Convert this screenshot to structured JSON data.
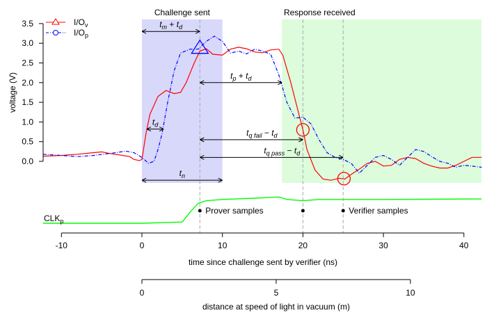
{
  "chart_data": {
    "type": "line",
    "xlabel": "time since challenge sent by verifier (ns)",
    "ylabel": "voltage (V)",
    "xlim": [
      -12.3,
      42.2
    ],
    "ylim": [
      -0.55,
      3.5
    ],
    "x_ticks": [
      -10,
      0,
      10,
      20,
      30,
      40
    ],
    "y_ticks": [
      "0.0",
      "0.5",
      "1.0",
      "1.5",
      "2.0",
      "2.5",
      "3.0",
      "3.5"
    ],
    "secondary_axis": {
      "label": "distance at speed of light in vacuum (m)",
      "ticks": [
        0,
        5,
        10
      ],
      "ns_per_unit": 3.3356
    },
    "legend": {
      "placement": "top-left",
      "entries": [
        {
          "name": "I/O",
          "sub": "v",
          "color": "#ff0000",
          "marker": "triangle",
          "dash": "solid"
        },
        {
          "name": "I/O",
          "sub": "p",
          "color": "#0000ff",
          "marker": "circle",
          "dash": "dot-dash"
        }
      ]
    },
    "regions": [
      {
        "label": "Challenge sent",
        "from": 0,
        "to": 10,
        "color": "#d8d8fb"
      },
      {
        "label": "Response received",
        "from": 17.4,
        "to": 42.2,
        "color": "#dcfcdc"
      }
    ],
    "series": [
      {
        "name": "I/Ov",
        "color": "#ff0000",
        "points": [
          [
            -12.3,
            0.13
          ],
          [
            -10,
            0.15
          ],
          [
            -8,
            0.18
          ],
          [
            -6,
            0.22
          ],
          [
            -5,
            0.24
          ],
          [
            -4,
            0.2
          ],
          [
            -3,
            0.17
          ],
          [
            -1.5,
            0.12
          ],
          [
            -1,
            0.05
          ],
          [
            -0.3,
            0.02
          ],
          [
            0,
            0.05
          ],
          [
            0.5,
            0.7
          ],
          [
            1,
            1.2
          ],
          [
            2,
            1.65
          ],
          [
            3,
            1.8
          ],
          [
            4,
            1.72
          ],
          [
            4.8,
            1.75
          ],
          [
            5.5,
            2.0
          ],
          [
            6.5,
            2.5
          ],
          [
            7.2,
            2.8
          ],
          [
            8,
            2.86
          ],
          [
            8.8,
            2.72
          ],
          [
            10,
            2.7
          ],
          [
            11,
            2.85
          ],
          [
            12,
            2.9
          ],
          [
            13,
            2.86
          ],
          [
            14,
            2.78
          ],
          [
            15,
            2.76
          ],
          [
            16,
            2.83
          ],
          [
            17,
            2.85
          ],
          [
            17.5,
            2.7
          ],
          [
            18.5,
            2.0
          ],
          [
            19.5,
            1.2
          ],
          [
            20,
            0.8
          ],
          [
            20.5,
            0.3
          ],
          [
            21.5,
            -0.22
          ],
          [
            22.5,
            -0.45
          ],
          [
            23.5,
            -0.48
          ],
          [
            24.5,
            -0.43
          ],
          [
            25.2,
            -0.45
          ],
          [
            26,
            -0.33
          ],
          [
            27,
            -0.2
          ],
          [
            28,
            -0.05
          ],
          [
            29,
            0.0
          ],
          [
            30,
            -0.12
          ],
          [
            31,
            -0.1
          ],
          [
            32,
            0.05
          ],
          [
            33,
            0.1
          ],
          [
            34,
            0.07
          ],
          [
            35,
            -0.05
          ],
          [
            36,
            -0.12
          ],
          [
            37,
            -0.17
          ],
          [
            38,
            -0.17
          ],
          [
            39,
            -0.1
          ],
          [
            40,
            0.0
          ],
          [
            41,
            0.1
          ],
          [
            42.2,
            0.1
          ]
        ]
      },
      {
        "name": "I/Op",
        "color": "#0000ff",
        "points": [
          [
            -12.3,
            0.18
          ],
          [
            -10,
            0.15
          ],
          [
            -8,
            0.12
          ],
          [
            -6,
            0.15
          ],
          [
            -4,
            0.2
          ],
          [
            -2,
            0.26
          ],
          [
            -1,
            0.22
          ],
          [
            0,
            0.1
          ],
          [
            0.8,
            -0.05
          ],
          [
            1.5,
            0.0
          ],
          [
            2,
            0.3
          ],
          [
            2.5,
            0.7
          ],
          [
            3.2,
            1.5
          ],
          [
            4,
            2.3
          ],
          [
            4.8,
            2.75
          ],
          [
            6,
            2.85
          ],
          [
            7,
            2.85
          ],
          [
            8,
            3.05
          ],
          [
            9,
            3.18
          ],
          [
            10,
            3.05
          ],
          [
            11,
            2.75
          ],
          [
            12,
            2.8
          ],
          [
            13,
            2.73
          ],
          [
            14,
            2.85
          ],
          [
            15,
            2.8
          ],
          [
            16,
            2.72
          ],
          [
            17,
            2.2
          ],
          [
            18,
            1.5
          ],
          [
            19,
            1.1
          ],
          [
            20,
            1.12
          ],
          [
            21,
            0.95
          ],
          [
            22,
            0.55
          ],
          [
            23,
            0.22
          ],
          [
            24,
            0.1
          ],
          [
            25,
            0.05
          ],
          [
            26,
            -0.05
          ],
          [
            27,
            -0.3
          ],
          [
            28,
            -0.1
          ],
          [
            29,
            0.1
          ],
          [
            30,
            0.15
          ],
          [
            31,
            0.05
          ],
          [
            32,
            -0.1
          ],
          [
            33,
            0.1
          ],
          [
            34,
            0.3
          ],
          [
            35,
            0.25
          ],
          [
            36,
            0.12
          ],
          [
            37,
            0.0
          ],
          [
            38,
            -0.05
          ],
          [
            39,
            -0.15
          ],
          [
            40,
            -0.1
          ],
          [
            41,
            -0.12
          ],
          [
            42.2,
            -0.15
          ]
        ]
      }
    ],
    "clk": {
      "label": "CLK",
      "sub": "p",
      "color": "#00ff00",
      "points": [
        [
          -12.3,
          0.0
        ],
        [
          0,
          0.0
        ],
        [
          5,
          0.05
        ],
        [
          6,
          0.45
        ],
        [
          7,
          0.8
        ],
        [
          8,
          0.9
        ],
        [
          10,
          0.95
        ],
        [
          14,
          1.0
        ],
        [
          17,
          1.05
        ],
        [
          18,
          0.95
        ],
        [
          20,
          0.9
        ],
        [
          22,
          0.95
        ],
        [
          30,
          0.95
        ],
        [
          42.2,
          0.97
        ]
      ]
    },
    "markers": [
      {
        "shape": "triangle",
        "color": "#0000ff",
        "x": 7.2,
        "y": 2.85
      },
      {
        "shape": "circle",
        "color": "#ff0000",
        "x": 20.0,
        "y": 0.8
      },
      {
        "shape": "circle",
        "color": "#ff0000",
        "x": 25.1,
        "y": -0.44
      }
    ],
    "vlines": [
      7.2,
      20,
      25
    ],
    "annotations": {
      "arrows": [
        {
          "label": "t",
          "sub": "m",
          "suffix": " + t",
          "sub2": "d",
          "from": 0,
          "to": 7.2,
          "y": 3.3
        },
        {
          "label": "t",
          "sub": "p",
          "suffix": " + t",
          "sub2": "d",
          "from": 7.2,
          "to": 17.4,
          "y": 2.0
        },
        {
          "label": "t",
          "sub": "d",
          "suffix": "",
          "sub2": "",
          "from": 0.6,
          "to": 2.7,
          "y": 0.82
        },
        {
          "label": "t",
          "sub": "q fail",
          "suffix": " − t",
          "sub2": "d",
          "from": 7.2,
          "to": 20,
          "y": 0.55
        },
        {
          "label": "t",
          "sub": "q pass",
          "suffix": " − t",
          "sub2": "d",
          "from": 7.2,
          "to": 25,
          "y": 0.1
        },
        {
          "label": "t",
          "sub": "n",
          "suffix": "",
          "sub2": "",
          "from": 0,
          "to": 10,
          "y": -0.48
        }
      ],
      "samples": [
        {
          "label": "Prover samples",
          "x": 7.2
        },
        {
          "label": "",
          "x": 20
        },
        {
          "label": "Verifier samples",
          "x": 25
        }
      ]
    }
  }
}
